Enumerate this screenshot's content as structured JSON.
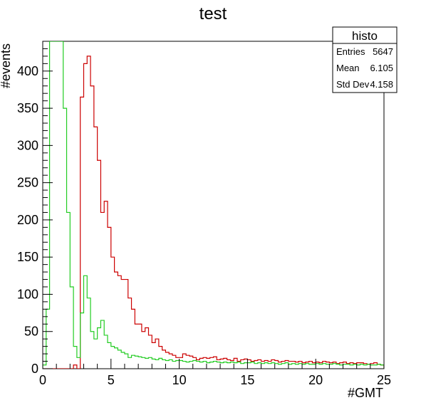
{
  "chart_data": {
    "type": "histogram",
    "title": "test",
    "xlabel": "#GMT",
    "ylabel": "#events",
    "xlim": [
      0,
      25
    ],
    "ylim": [
      0,
      440
    ],
    "x_ticks": [
      0,
      5,
      10,
      15,
      20,
      25
    ],
    "y_ticks": [
      0,
      50,
      100,
      150,
      200,
      250,
      300,
      350,
      400
    ],
    "bin_width": 0.25,
    "grid": false,
    "legend": "none",
    "series": [
      {
        "color": "#cc0000",
        "values": [
          0,
          0,
          0,
          0,
          0,
          0,
          0,
          0,
          0,
          5,
          0,
          365,
          410,
          420,
          380,
          325,
          280,
          210,
          225,
          190,
          150,
          130,
          125,
          120,
          120,
          95,
          80,
          60,
          60,
          50,
          55,
          45,
          35,
          40,
          30,
          25,
          22,
          20,
          18,
          15,
          15,
          20,
          18,
          17,
          15,
          12,
          14,
          15,
          14,
          15,
          16,
          12,
          13,
          14,
          12,
          11,
          14,
          10,
          12,
          13,
          12,
          10,
          11,
          12,
          10,
          11,
          10,
          12,
          11,
          9,
          10,
          11,
          10,
          10,
          9,
          10,
          8,
          9,
          10,
          8,
          9,
          8,
          10,
          9,
          8,
          9,
          7,
          8,
          9,
          7,
          8,
          7,
          8,
          8,
          7,
          6,
          7,
          8,
          6,
          5
        ]
      },
      {
        "color": "#22cc22",
        "values": [
          5,
          80,
          440,
          440,
          440,
          440,
          350,
          210,
          110,
          30,
          15,
          75,
          125,
          95,
          50,
          40,
          55,
          65,
          45,
          35,
          30,
          28,
          25,
          22,
          20,
          15,
          18,
          17,
          16,
          15,
          14,
          15,
          13,
          12,
          14,
          12,
          11,
          12,
          10,
          11,
          11,
          10,
          9,
          10,
          11,
          10,
          9,
          10,
          8,
          9,
          10,
          9,
          8,
          9,
          8,
          9,
          8,
          9,
          7,
          8,
          8,
          9,
          7,
          8,
          7,
          8,
          7,
          8,
          7,
          6,
          7,
          8,
          6,
          7,
          6,
          7,
          6,
          7,
          6,
          6,
          7,
          6,
          7,
          6,
          6,
          7,
          6,
          5,
          6,
          6,
          5,
          6,
          5,
          6,
          5,
          6,
          5,
          5,
          6,
          5
        ]
      }
    ]
  },
  "stats_box": {
    "title": "histo",
    "rows": [
      {
        "label": "Entries",
        "value": "5647"
      },
      {
        "label": "Mean",
        "value": "6.105"
      },
      {
        "label": "Std Dev",
        "value": "4.158"
      }
    ]
  }
}
